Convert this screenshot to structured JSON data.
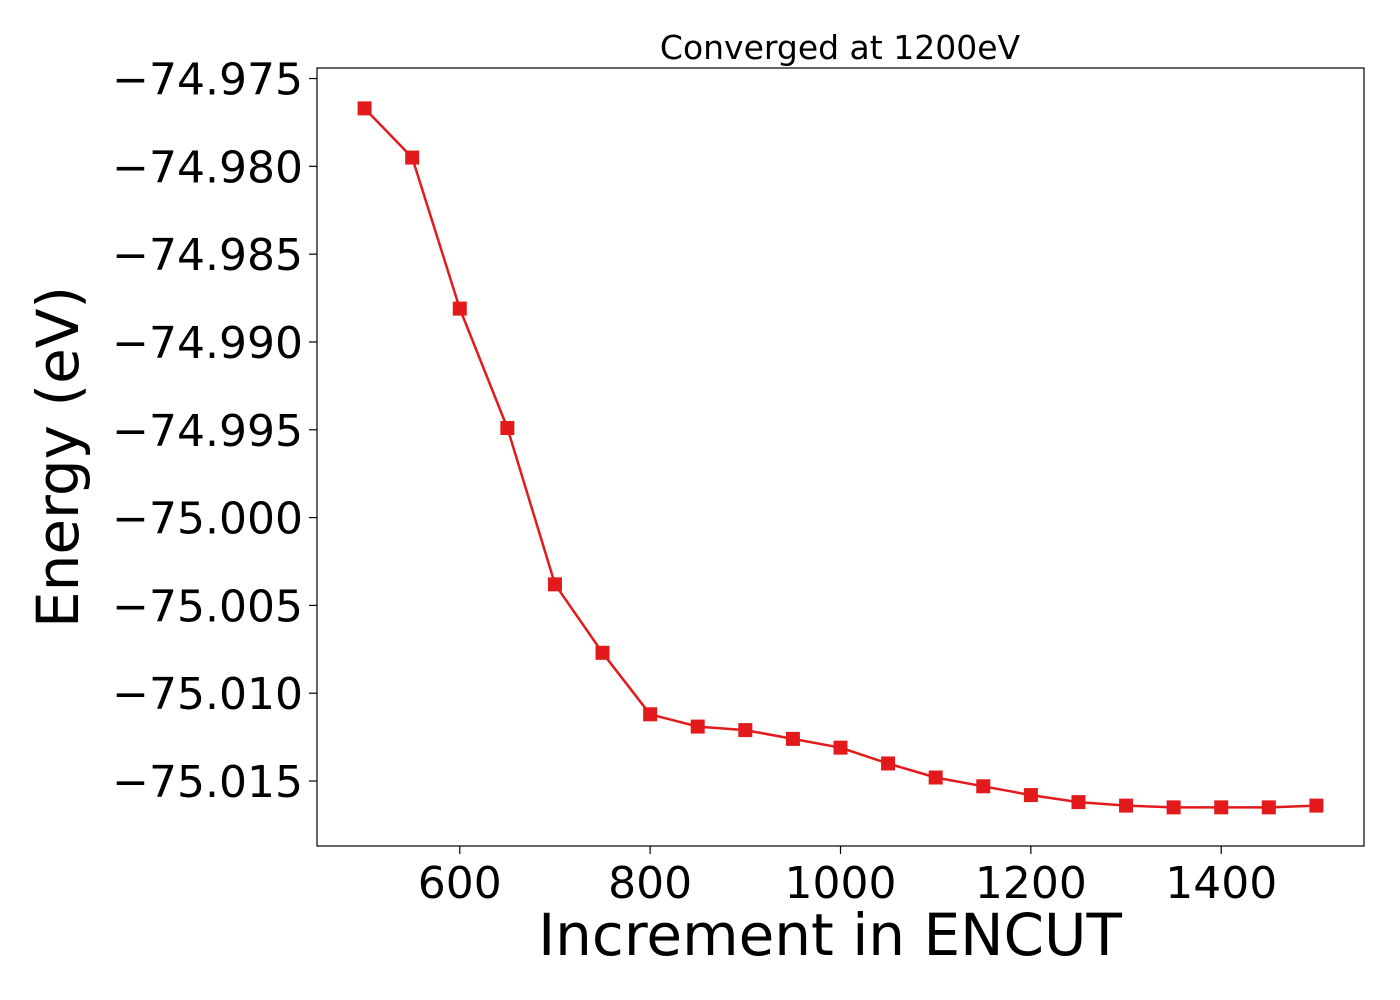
{
  "chart_data": {
    "type": "line",
    "title": "Converged at 1200eV",
    "xlabel": "Increment in ENCUT",
    "ylabel": "Energy (eV)",
    "xlim": [
      450,
      1550
    ],
    "ylim": [
      -75.0187,
      -74.9744
    ],
    "xticks": [
      600,
      800,
      1000,
      1200,
      1400
    ],
    "xtick_labels": [
      "600",
      "800",
      "1000",
      "1200",
      "1400"
    ],
    "yticks": [
      -74.975,
      -74.98,
      -74.985,
      -74.99,
      -74.995,
      -75.0,
      -75.005,
      -75.01,
      -75.015
    ],
    "ytick_labels": [
      "−74.975",
      "−74.980",
      "−74.985",
      "−74.990",
      "−74.995",
      "−75.000",
      "−75.005",
      "−75.010",
      "−75.015"
    ],
    "grid": false,
    "color": "#e31a1c",
    "marker": "square",
    "x": [
      500,
      550,
      600,
      650,
      700,
      750,
      800,
      850,
      900,
      950,
      1000,
      1050,
      1100,
      1150,
      1200,
      1250,
      1300,
      1350,
      1400,
      1450,
      1500
    ],
    "y": [
      -74.9767,
      -74.9795,
      -74.9881,
      -74.9949,
      -75.0038,
      -75.0077,
      -75.0112,
      -75.0119,
      -75.0121,
      -75.0126,
      -75.0131,
      -75.014,
      -75.0148,
      -75.0153,
      -75.0158,
      -75.0162,
      -75.0164,
      -75.0165,
      -75.0165,
      -75.0165,
      -75.0164
    ]
  }
}
